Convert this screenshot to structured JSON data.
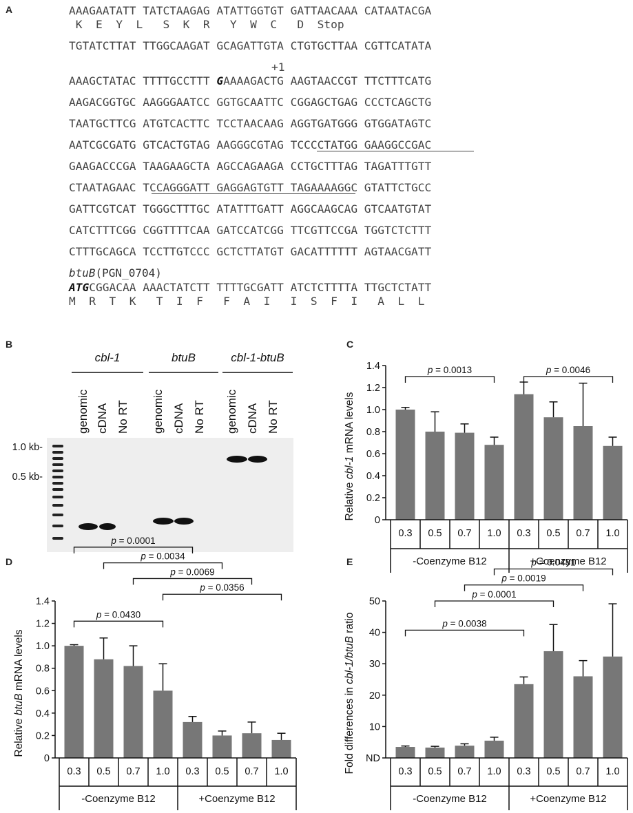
{
  "panels": {
    "a": "A",
    "b": "B",
    "c": "C",
    "d": "D",
    "e": "E"
  },
  "panel_a": {
    "lines": [
      "AAAGAATATT TATCTAAGAG ATATTGGTGT GATTAACAAA CATAATACGA",
      " K  E  Y  L   S  K  R   Y  W  C   D  Stop",
      "TGTATCTTAT TTGGCAAGAT GCAGATTGTA CTGTGCTTAA CGTTCATATA",
      "+1",
      "AAAGCTATAC TTTTGCCTTT ",
      "G",
      "AAAAGACTG AAGTAACCGT TTCTTTCATG",
      "AAGACGGTGC AAGGGAATCC GGTGCAATTC CGGAGCTGAG CCCTCAGCTG",
      "TAATGCTTCG ATGTCACTTC TCCTAACAAG AGGTGATGGG GTGGATAGTC",
      "AATCGCGATG GTCACTGTAG AAGGGCGTAG TCCCCTATGG GAAGGCCGAC",
      "GAAGACCCGA TAAGAAGCTA AGCCAGAAGA CCTGCTTTAG TAGATTTGTT",
      "CTAATAGAAC TCCAGGGATT GAGGAGTGTT TAGAAAAGGC GTATTCTGCC",
      "GATTCGTCAT TGGGCTTTGC ATATTTGATT AGGCAAGCAG GTCAATGTAT",
      "CATCTTTCGG CGGTTTTCAA GATCCATCGG TTCGTTCCGA TGGTCTCTTT",
      "CTTTGCAGCA TCCTTGTCCC GCTCTTATGT GACATTTTTT AGTAACGATT",
      "ATG",
      "CGGACAA AAACTATCTT TTTTGCGATT ATCTCTTTTA TTGCTCTATT",
      "M  R  T  K   T  I  F   F  A  I   I  S  F  I   A  L  L"
    ],
    "gene_name": "btuB",
    "gene_id": "(PGN_0704)"
  },
  "panel_b": {
    "groups": [
      "cbl-1",
      "btuB",
      "cbl-1-btuB"
    ],
    "lanes": [
      "genomic",
      "cDNA",
      "No RT",
      "genomic",
      "cDNA",
      "No RT",
      "genomic",
      "cDNA",
      "No RT"
    ],
    "markers": [
      "1.0 kb-",
      "0.5 kb-"
    ]
  },
  "chart_data": [
    {
      "type": "bar",
      "panel": "C",
      "ylabel": "Relative cbl-1 mRNA levels",
      "ylabel_parts": [
        "Relative ",
        "cbl-1",
        " mRNA levels"
      ],
      "ylim": [
        0,
        1.4
      ],
      "yticks": [
        "0",
        "0.2",
        "0.4",
        "0.6",
        "0.8",
        "1.0",
        "1.2",
        "1.4"
      ],
      "categories": [
        "0.3",
        "0.5",
        "0.7",
        "1.0",
        "0.3",
        "0.5",
        "0.7",
        "1.0"
      ],
      "groups": [
        "-Coenzyme B12",
        "+Coenzyme B12"
      ],
      "values": [
        1.0,
        0.8,
        0.79,
        0.68,
        1.14,
        0.93,
        0.85,
        0.67
      ],
      "errors": [
        0.02,
        0.18,
        0.08,
        0.07,
        0.11,
        0.14,
        0.39,
        0.08
      ],
      "pvalues": [
        {
          "label": "p = 0.0013",
          "from": 0,
          "to": 3,
          "y": 1.3
        },
        {
          "label": "p = 0.0046",
          "from": 4,
          "to": 7,
          "y": 1.3
        }
      ],
      "bar_color": "#777777"
    },
    {
      "type": "bar",
      "panel": "D",
      "ylabel": "Relative btuB mRNA levels",
      "ylabel_parts": [
        "Relative ",
        "btuB",
        " mRNA levels"
      ],
      "ylim": [
        0,
        1.4
      ],
      "yticks": [
        "0",
        "0.2",
        "0.4",
        "0.6",
        "0.8",
        "1.0",
        "1.2",
        "1.4"
      ],
      "categories": [
        "0.3",
        "0.5",
        "0.7",
        "1.0",
        "0.3",
        "0.5",
        "0.7",
        "1.0"
      ],
      "groups": [
        "-Coenzyme B12",
        "+Coenzyme B12"
      ],
      "values": [
        1.0,
        0.88,
        0.82,
        0.6,
        0.32,
        0.2,
        0.22,
        0.16
      ],
      "errors": [
        0.01,
        0.19,
        0.18,
        0.24,
        0.05,
        0.04,
        0.1,
        0.06
      ],
      "pvalues": [
        {
          "label": "p = 0.0001",
          "from": 0,
          "to": 4,
          "y": 1.88
        },
        {
          "label": "p = 0.0034",
          "from": 1,
          "to": 5,
          "y": 1.74
        },
        {
          "label": "p = 0.0069",
          "from": 2,
          "to": 6,
          "y": 1.6
        },
        {
          "label": "p = 0.0430",
          "from": 0,
          "to": 3,
          "y": 1.22
        },
        {
          "label": "p = 0.0356",
          "from": 3,
          "to": 7,
          "y": 1.46
        }
      ],
      "bar_color": "#777777"
    },
    {
      "type": "bar",
      "panel": "E",
      "ylabel": "Fold differences in cbl-1/btuB ratio",
      "ylabel_parts": [
        "Fold differences in ",
        "cbl-1/btuB",
        " ratio"
      ],
      "ylim": [
        0,
        50
      ],
      "yticks": [
        "ND",
        "10",
        "20",
        "30",
        "40",
        "50"
      ],
      "categories": [
        "0.3",
        "0.5",
        "0.7",
        "1.0",
        "0.3",
        "0.5",
        "0.7",
        "1.0"
      ],
      "groups": [
        "-Coenzyme B12",
        "+Coenzyme B12"
      ],
      "values": [
        3.5,
        3.3,
        3.9,
        5.5,
        23.5,
        34,
        26,
        32.3
      ],
      "errors": [
        0.3,
        0.4,
        0.6,
        1.1,
        2.3,
        8.5,
        5,
        16.8
      ],
      "pvalues": [
        {
          "label": "p = 0.0481",
          "from": 3,
          "to": 7,
          "y": 60.2
        },
        {
          "label": "p = 0.0019",
          "from": 2,
          "to": 6,
          "y": 55.1
        },
        {
          "label": "p = 0.0001",
          "from": 1,
          "to": 5,
          "y": 50
        },
        {
          "label": "p = 0.0038",
          "from": 0,
          "to": 4,
          "y": 40.7
        }
      ],
      "bar_color": "#777777"
    }
  ]
}
